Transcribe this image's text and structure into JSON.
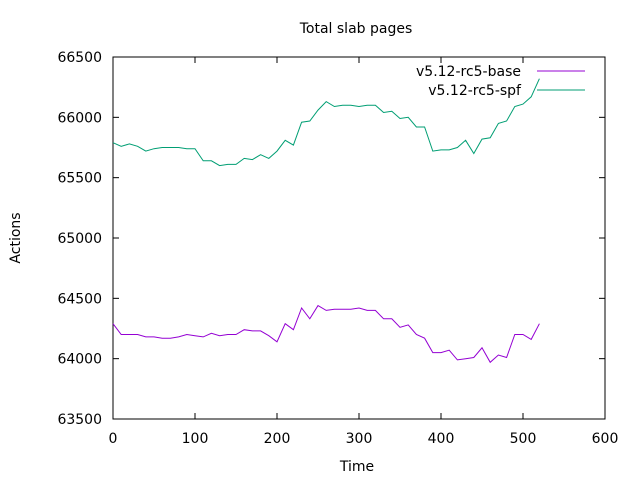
{
  "chart_data": {
    "type": "line",
    "title": "Total slab pages",
    "xlabel": "Time",
    "ylabel": "Actions",
    "xlim": [
      0,
      600
    ],
    "ylim": [
      63500,
      66500
    ],
    "xticks": [
      0,
      100,
      200,
      300,
      400,
      500,
      600
    ],
    "yticks": [
      63500,
      64000,
      64500,
      65000,
      65500,
      66000,
      66500
    ],
    "grid": false,
    "legend_position": "top-right",
    "series": [
      {
        "name": "v5.12-rc5-base",
        "color": "#9400d3",
        "x": [
          0,
          10,
          20,
          30,
          40,
          50,
          60,
          70,
          80,
          90,
          100,
          110,
          120,
          130,
          140,
          150,
          160,
          170,
          180,
          190,
          200,
          210,
          220,
          230,
          240,
          250,
          260,
          270,
          280,
          290,
          300,
          310,
          320,
          330,
          340,
          350,
          360,
          370,
          380,
          390,
          400,
          410,
          420,
          430,
          440,
          450,
          460,
          470,
          480,
          490,
          500,
          510,
          520
        ],
        "y": [
          64290,
          64200,
          64200,
          64200,
          64180,
          64180,
          64170,
          64170,
          64180,
          64200,
          64190,
          64180,
          64210,
          64190,
          64200,
          64200,
          64240,
          64230,
          64230,
          64190,
          64140,
          64290,
          64240,
          64420,
          64330,
          64440,
          64400,
          64410,
          64410,
          64410,
          64420,
          64400,
          64400,
          64330,
          64330,
          64260,
          64280,
          64200,
          64170,
          64050,
          64050,
          64070,
          63990,
          64000,
          64010,
          64090,
          63970,
          64030,
          64010,
          64200,
          64200,
          64160,
          64290
        ]
      },
      {
        "name": "v5.12-rc5-spf",
        "color": "#009e73",
        "x": [
          0,
          10,
          20,
          30,
          40,
          50,
          60,
          70,
          80,
          90,
          100,
          110,
          120,
          130,
          140,
          150,
          160,
          170,
          180,
          190,
          200,
          210,
          220,
          230,
          240,
          250,
          260,
          270,
          280,
          290,
          300,
          310,
          320,
          330,
          340,
          350,
          360,
          370,
          380,
          390,
          400,
          410,
          420,
          430,
          440,
          450,
          460,
          470,
          480,
          490,
          500,
          510,
          520
        ],
        "y": [
          65790,
          65760,
          65780,
          65760,
          65720,
          65740,
          65750,
          65750,
          65750,
          65740,
          65740,
          65640,
          65640,
          65600,
          65610,
          65610,
          65660,
          65650,
          65690,
          65660,
          65720,
          65810,
          65770,
          65960,
          65970,
          66060,
          66130,
          66090,
          66100,
          66100,
          66090,
          66100,
          66100,
          66040,
          66050,
          65990,
          66000,
          65920,
          65920,
          65720,
          65730,
          65730,
          65750,
          65810,
          65700,
          65820,
          65830,
          65950,
          65970,
          66090,
          66110,
          66170,
          66320
        ]
      }
    ]
  }
}
